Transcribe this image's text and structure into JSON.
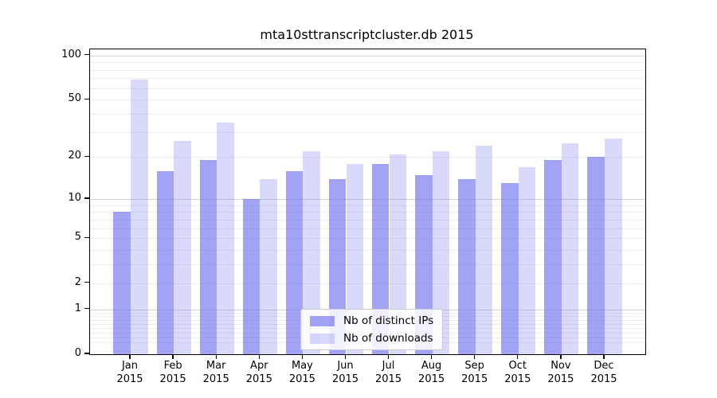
{
  "chart_data": {
    "type": "bar",
    "title": "mta10sttranscriptcluster.db 2015",
    "x_tick_months": [
      "Jan",
      "Feb",
      "Mar",
      "Apr",
      "May",
      "Jun",
      "Jul",
      "Aug",
      "Sep",
      "Oct",
      "Nov",
      "Dec"
    ],
    "x_tick_year": "2015",
    "series": [
      {
        "name": "Nb of distinct IPs",
        "color": "#6666ee",
        "alpha": 0.6,
        "values": [
          8,
          16,
          19,
          10,
          16,
          14,
          18,
          15,
          14,
          13,
          19,
          20
        ]
      },
      {
        "name": "Nb of downloads",
        "color": "#6666ee",
        "alpha": 0.25,
        "values": [
          69,
          26,
          35,
          14,
          22,
          18,
          21,
          22,
          24,
          17,
          25,
          27
        ]
      }
    ],
    "y_axis": {
      "scale": "log1p",
      "tick_labels": [
        100,
        50,
        20,
        10,
        5,
        2,
        1,
        0
      ],
      "top_value": 110,
      "major_gridlines_at": [
        1,
        10,
        100
      ],
      "minor_gridlines": true
    },
    "legend": {
      "position": "lower-center"
    },
    "grid": true
  }
}
